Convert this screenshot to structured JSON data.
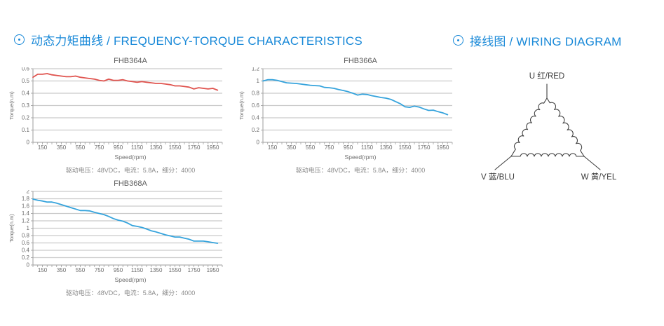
{
  "headers": {
    "torque": "动态力矩曲线 / FREQUENCY-TORQUE CHARACTERISTICS",
    "wiring": "接线图 / WIRING DIAGRAM"
  },
  "icons": {
    "section_bullet": "circled-dot"
  },
  "colors": {
    "accent_blue": "#1989d8",
    "red_series": "#e0544f",
    "blue_series": "#35a3dc",
    "grid": "#cbcbcb",
    "axis": "#9c9c9c",
    "tick_text": "#6b6b6b"
  },
  "chart_data": [
    {
      "type": "line",
      "title": "FHB364A",
      "xlabel": "Speed(rpm)",
      "ylabel": "Torque(n.m)",
      "caption": "驱动电压：48VDC，电流：5.8A，细分：4000",
      "color": "#e0544f",
      "xlim": [
        50,
        2050
      ],
      "ylim": [
        0,
        0.6
      ],
      "ytick": 0.1,
      "xminor": 50,
      "xticks": [
        150,
        350,
        550,
        750,
        950,
        1150,
        1350,
        1550,
        1750,
        1950
      ],
      "x": [
        50,
        100,
        150,
        200,
        250,
        300,
        350,
        400,
        450,
        500,
        550,
        600,
        650,
        700,
        750,
        800,
        850,
        900,
        950,
        1000,
        1050,
        1100,
        1150,
        1200,
        1250,
        1300,
        1350,
        1400,
        1450,
        1500,
        1550,
        1600,
        1650,
        1700,
        1750,
        1800,
        1850,
        1900,
        1950,
        2000
      ],
      "values": [
        0.53,
        0.555,
        0.555,
        0.56,
        0.55,
        0.545,
        0.54,
        0.535,
        0.535,
        0.54,
        0.53,
        0.525,
        0.52,
        0.515,
        0.505,
        0.5,
        0.515,
        0.505,
        0.505,
        0.51,
        0.5,
        0.495,
        0.49,
        0.495,
        0.49,
        0.485,
        0.48,
        0.48,
        0.475,
        0.47,
        0.46,
        0.46,
        0.455,
        0.45,
        0.435,
        0.445,
        0.44,
        0.435,
        0.44,
        0.425
      ]
    },
    {
      "type": "line",
      "title": "FHB366A",
      "xlabel": "Speed(rpm)",
      "ylabel": "Torque(n.m)",
      "caption": "驱动电压：48VDC，电流：5.8A，细分：4000",
      "color": "#35a3dc",
      "xlim": [
        50,
        2050
      ],
      "ylim": [
        0,
        1.2
      ],
      "ytick": 0.2,
      "xminor": 50,
      "xticks": [
        150,
        350,
        550,
        750,
        950,
        1150,
        1350,
        1550,
        1750,
        1950
      ],
      "x": [
        50,
        100,
        150,
        200,
        250,
        300,
        350,
        400,
        450,
        500,
        550,
        600,
        650,
        700,
        750,
        800,
        850,
        900,
        950,
        1000,
        1050,
        1100,
        1150,
        1200,
        1250,
        1300,
        1350,
        1400,
        1450,
        1500,
        1550,
        1600,
        1650,
        1700,
        1750,
        1800,
        1850,
        1900,
        1950,
        2000
      ],
      "values": [
        1.0,
        1.02,
        1.02,
        1.01,
        0.99,
        0.97,
        0.965,
        0.96,
        0.95,
        0.94,
        0.93,
        0.925,
        0.92,
        0.895,
        0.89,
        0.88,
        0.86,
        0.845,
        0.825,
        0.8,
        0.77,
        0.785,
        0.78,
        0.76,
        0.745,
        0.73,
        0.72,
        0.7,
        0.665,
        0.63,
        0.58,
        0.57,
        0.59,
        0.575,
        0.545,
        0.52,
        0.525,
        0.5,
        0.48,
        0.45
      ]
    },
    {
      "type": "line",
      "title": "FHB368A",
      "xlabel": "Speed(rpm)",
      "ylabel": "Torque(n.m)",
      "caption": "驱动电压：48VDC，电流：5.8A，细分：4000",
      "color": "#35a3dc",
      "xlim": [
        50,
        2050
      ],
      "ylim": [
        0,
        2
      ],
      "ytick": 0.2,
      "xminor": 50,
      "xticks": [
        150,
        350,
        550,
        750,
        950,
        1150,
        1350,
        1550,
        1750,
        1950
      ],
      "x": [
        50,
        100,
        150,
        200,
        250,
        300,
        350,
        400,
        450,
        500,
        550,
        600,
        650,
        700,
        750,
        800,
        850,
        900,
        950,
        1000,
        1050,
        1100,
        1150,
        1200,
        1250,
        1300,
        1350,
        1400,
        1450,
        1500,
        1550,
        1600,
        1650,
        1700,
        1750,
        1800,
        1850,
        1900,
        1950,
        2000
      ],
      "values": [
        1.79,
        1.76,
        1.74,
        1.71,
        1.71,
        1.68,
        1.64,
        1.6,
        1.56,
        1.52,
        1.48,
        1.48,
        1.47,
        1.43,
        1.4,
        1.37,
        1.32,
        1.26,
        1.22,
        1.19,
        1.14,
        1.07,
        1.05,
        1.02,
        0.98,
        0.93,
        0.9,
        0.86,
        0.82,
        0.79,
        0.76,
        0.76,
        0.73,
        0.7,
        0.65,
        0.65,
        0.65,
        0.63,
        0.61,
        0.59
      ]
    }
  ],
  "wiring": {
    "terminals": [
      {
        "id": "U",
        "label": "U 红/RED"
      },
      {
        "id": "V",
        "label": "V 蓝/BLU"
      },
      {
        "id": "W",
        "label": "W 黄/YEL"
      }
    ]
  }
}
